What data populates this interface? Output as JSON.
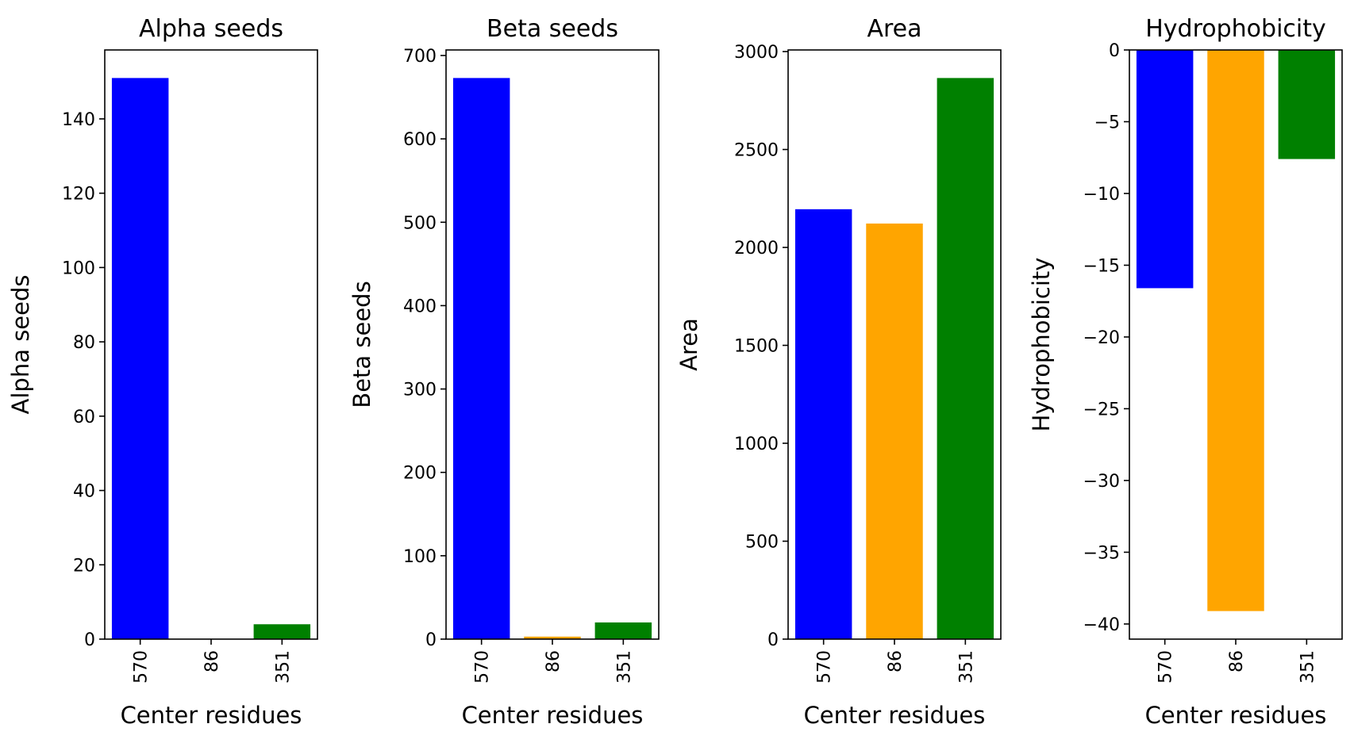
{
  "chart_data": [
    {
      "type": "bar",
      "title": "Alpha seeds",
      "xlabel": "Center residues",
      "ylabel": "Alpha seeds",
      "categories": [
        "570",
        "86",
        "351"
      ],
      "values": [
        151,
        0,
        4
      ],
      "colors": [
        "#0000ff",
        "#ffa500",
        "#008000"
      ],
      "ylim": [
        0,
        158.55
      ],
      "yticks": [
        0,
        20,
        40,
        60,
        80,
        100,
        120,
        140
      ],
      "ytick_labels": [
        "0",
        "20",
        "40",
        "60",
        "80",
        "100",
        "120",
        "140"
      ]
    },
    {
      "type": "bar",
      "title": "Beta seeds",
      "xlabel": "Center residues",
      "ylabel": "Beta seeds",
      "categories": [
        "570",
        "86",
        "351"
      ],
      "values": [
        673,
        3,
        20
      ],
      "colors": [
        "#0000ff",
        "#ffa500",
        "#008000"
      ],
      "ylim": [
        0,
        706.65
      ],
      "yticks": [
        0,
        100,
        200,
        300,
        400,
        500,
        600,
        700
      ],
      "ytick_labels": [
        "0",
        "100",
        "200",
        "300",
        "400",
        "500",
        "600",
        "700"
      ]
    },
    {
      "type": "bar",
      "title": "Area",
      "xlabel": "Center residues",
      "ylabel": "Area",
      "categories": [
        "570",
        "86",
        "351"
      ],
      "values": [
        2195,
        2122,
        2865
      ],
      "colors": [
        "#0000ff",
        "#ffa500",
        "#008000"
      ],
      "ylim": [
        0,
        3008.25
      ],
      "yticks": [
        0,
        500,
        1000,
        1500,
        2000,
        2500,
        3000
      ],
      "ytick_labels": [
        "0",
        "500",
        "1000",
        "1500",
        "2000",
        "2500",
        "3000"
      ]
    },
    {
      "type": "bar",
      "title": "Hydrophobicity",
      "xlabel": "Center residues",
      "ylabel": "Hydrophobicity",
      "categories": [
        "570",
        "86",
        "351"
      ],
      "values": [
        -16.6,
        -39.1,
        -7.6
      ],
      "colors": [
        "#0000ff",
        "#ffa500",
        "#008000"
      ],
      "ylim": [
        -41.055,
        0
      ],
      "yticks": [
        0,
        -5,
        -10,
        -15,
        -20,
        -25,
        -30,
        -35,
        -40
      ],
      "ytick_labels": [
        "0",
        "−5",
        "−10",
        "−15",
        "−20",
        "−25",
        "−30",
        "−35",
        "−40"
      ]
    }
  ]
}
